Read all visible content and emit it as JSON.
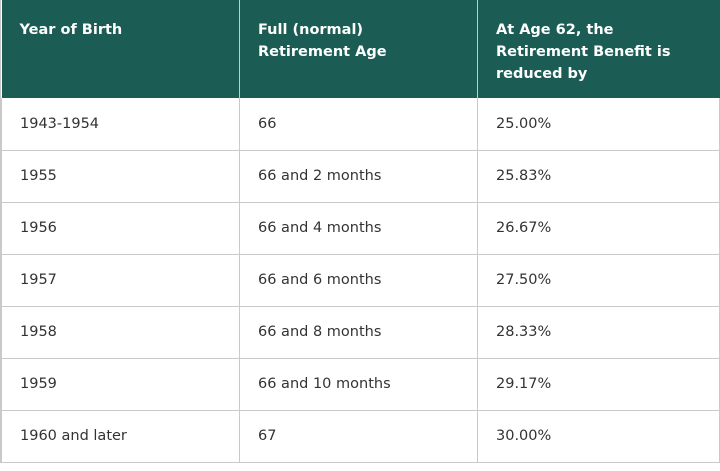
{
  "table": {
    "header": [
      "Year of Birth",
      "Full (normal) Retirement Age",
      "At Age 62, the Retirement Benefit is reduced by"
    ],
    "rows": [
      [
        "1943-1954",
        "66",
        "25.00%"
      ],
      [
        "1955",
        "66 and 2 months",
        "25.83%"
      ],
      [
        "1956",
        "66 and 4 months",
        "26.67%"
      ],
      [
        "1957",
        "66 and 6 months",
        "27.50%"
      ],
      [
        "1958",
        "66 and 8 months",
        "28.33%"
      ],
      [
        "1959",
        "66 and 10 months",
        "29.17%"
      ],
      [
        "1960 and later",
        "67",
        "30.00%"
      ]
    ]
  }
}
